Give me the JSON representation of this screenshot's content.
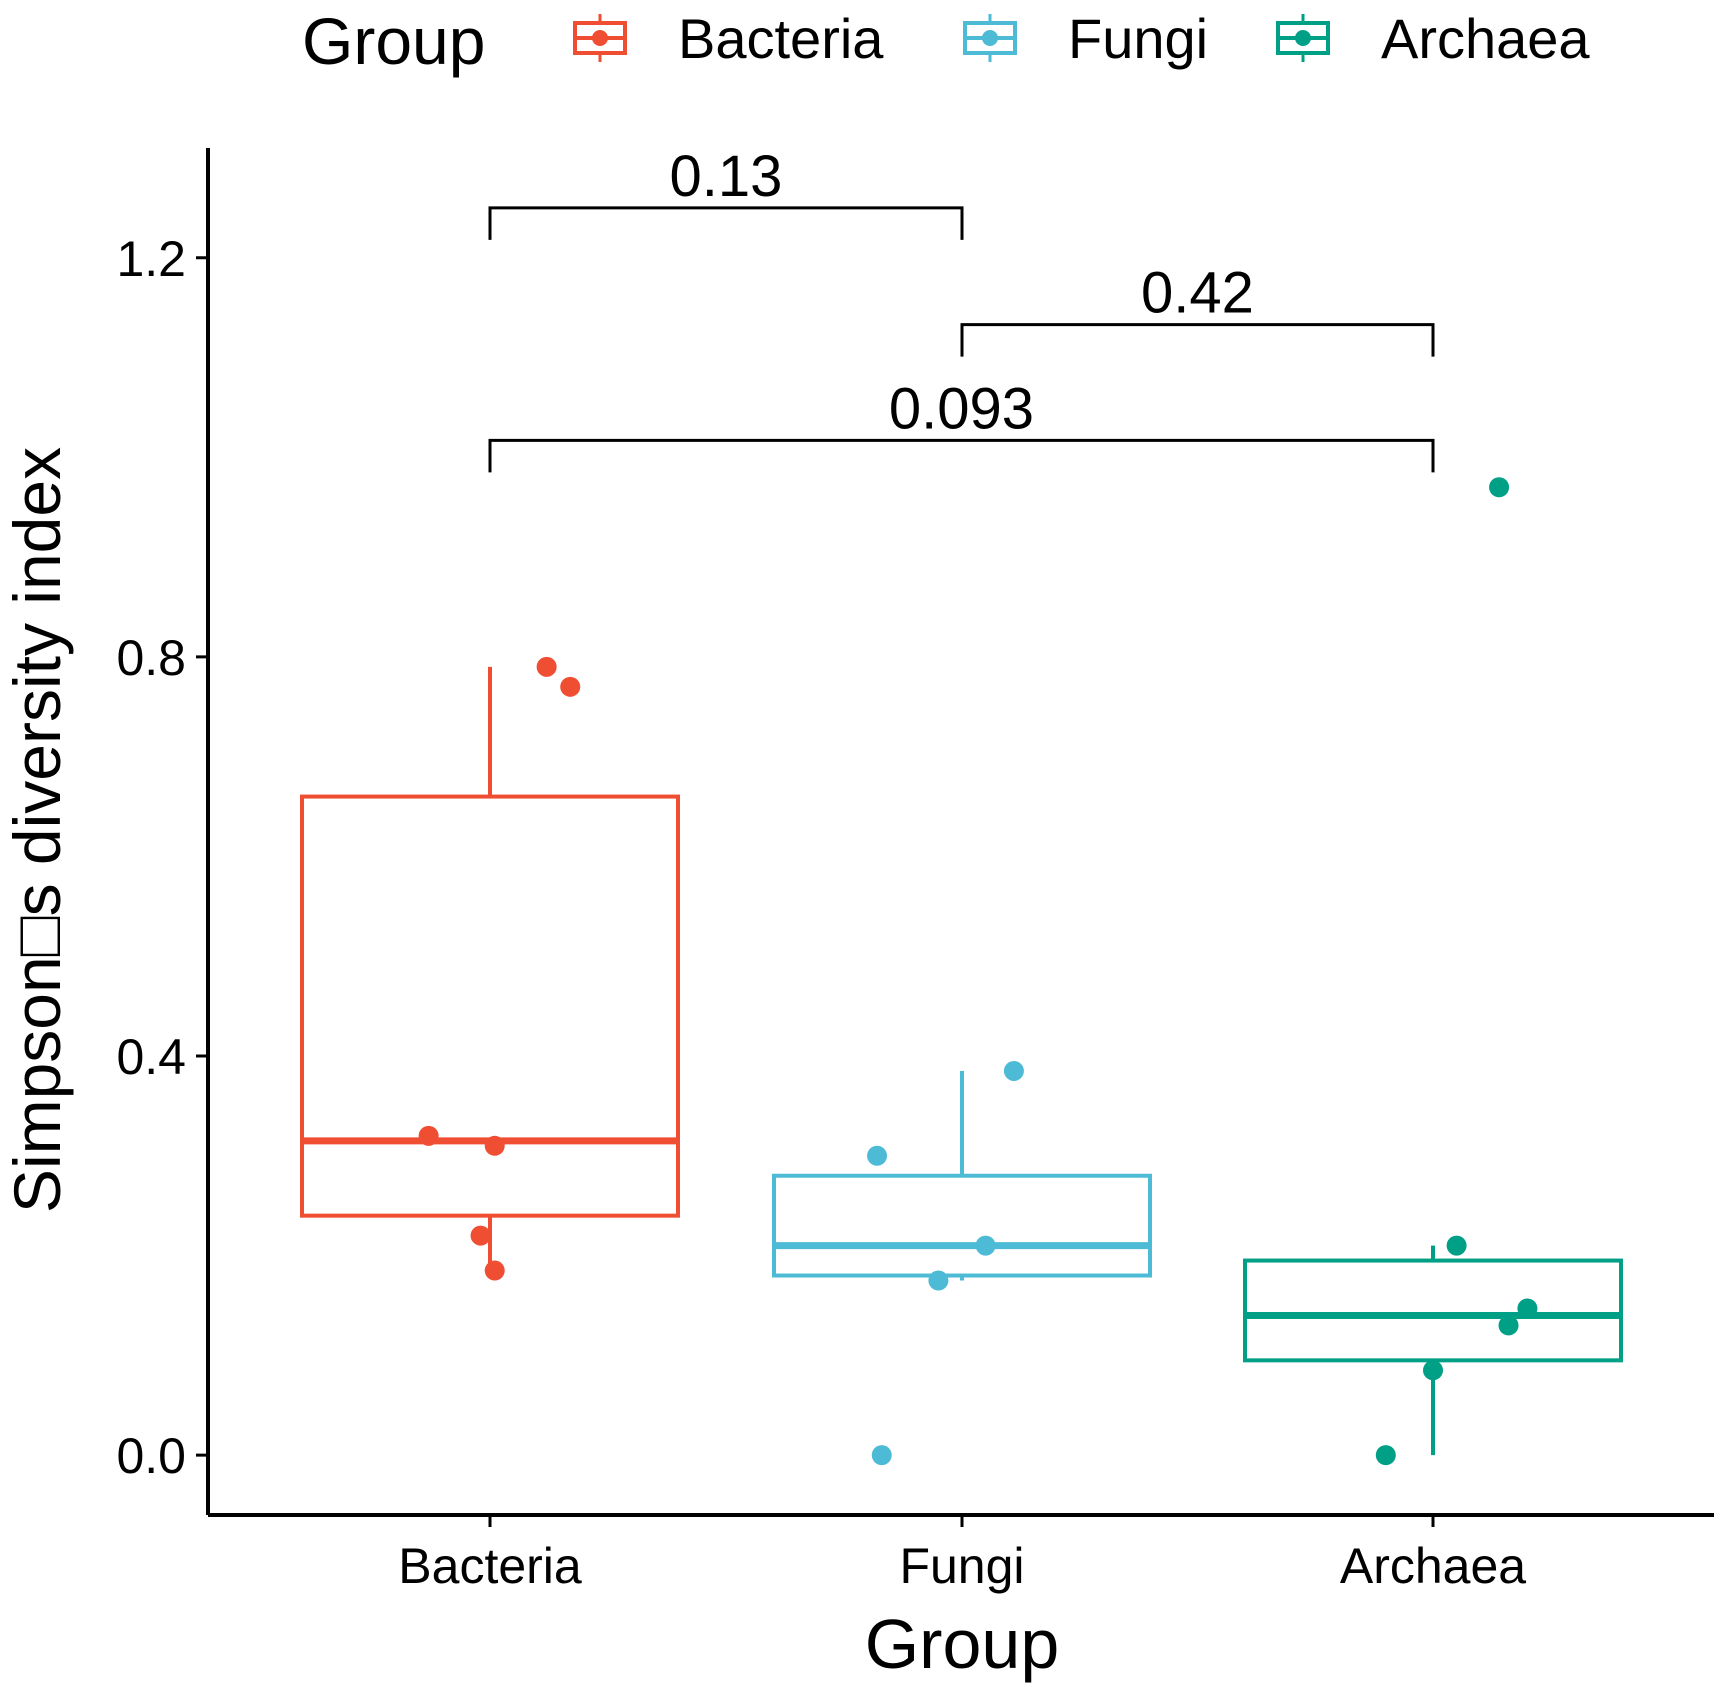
{
  "chart_data": {
    "type": "boxplot",
    "title": "",
    "xlabel": "Group",
    "ylabel": "Simpson□s diversity index",
    "ylim": [
      -0.06,
      1.31
    ],
    "y_ticks": [
      "0.0",
      "0.4",
      "0.8",
      "1.2"
    ],
    "y_tick_values": [
      0.0,
      0.4,
      0.8,
      1.2
    ],
    "legend": {
      "title": "Group",
      "position": "top",
      "entries": [
        {
          "label": "Bacteria",
          "color": "#F04E33"
        },
        {
          "label": "Fungi",
          "color": "#4DBBD5"
        },
        {
          "label": "Archaea",
          "color": "#00A087"
        }
      ]
    },
    "categories": [
      "Bacteria",
      "Fungi",
      "Archaea"
    ],
    "groups": [
      {
        "name": "Bacteria",
        "color": "#F04E33",
        "box": {
          "whisker_low": 0.19,
          "q1": 0.24,
          "median": 0.315,
          "q3": 0.66,
          "whisker_high": 0.79
        },
        "points": [
          {
            "offset": 0.12,
            "y": 0.79
          },
          {
            "offset": 0.17,
            "y": 0.77
          },
          {
            "offset": -0.13,
            "y": 0.32
          },
          {
            "offset": 0.01,
            "y": 0.31
          },
          {
            "offset": -0.02,
            "y": 0.22
          },
          {
            "offset": 0.01,
            "y": 0.185
          }
        ]
      },
      {
        "name": "Fungi",
        "color": "#4DBBD5",
        "box": {
          "whisker_low": 0.175,
          "q1": 0.18,
          "median": 0.21,
          "q3": 0.28,
          "whisker_high": 0.385
        },
        "points": [
          {
            "offset": 0.11,
            "y": 0.385
          },
          {
            "offset": -0.18,
            "y": 0.3
          },
          {
            "offset": 0.05,
            "y": 0.21
          },
          {
            "offset": -0.05,
            "y": 0.175
          },
          {
            "offset": -0.17,
            "y": 0.0
          }
        ]
      },
      {
        "name": "Archaea",
        "color": "#00A087",
        "box": {
          "whisker_low": 0.0,
          "q1": 0.095,
          "median": 0.14,
          "q3": 0.195,
          "whisker_high": 0.21
        },
        "points": [
          {
            "offset": 0.14,
            "y": 0.97
          },
          {
            "offset": 0.05,
            "y": 0.21
          },
          {
            "offset": 0.2,
            "y": 0.147
          },
          {
            "offset": 0.16,
            "y": 0.13
          },
          {
            "offset": 0.0,
            "y": 0.085
          },
          {
            "offset": -0.1,
            "y": 0.0
          }
        ]
      }
    ],
    "comparisons": [
      {
        "from": "Bacteria",
        "to": "Fungi",
        "label": "0.13",
        "y": 1.25
      },
      {
        "from": "Fungi",
        "to": "Archaea",
        "label": "0.42",
        "y": 1.133
      },
      {
        "from": "Bacteria",
        "to": "Archaea",
        "label": "0.093",
        "y": 1.017
      }
    ]
  }
}
